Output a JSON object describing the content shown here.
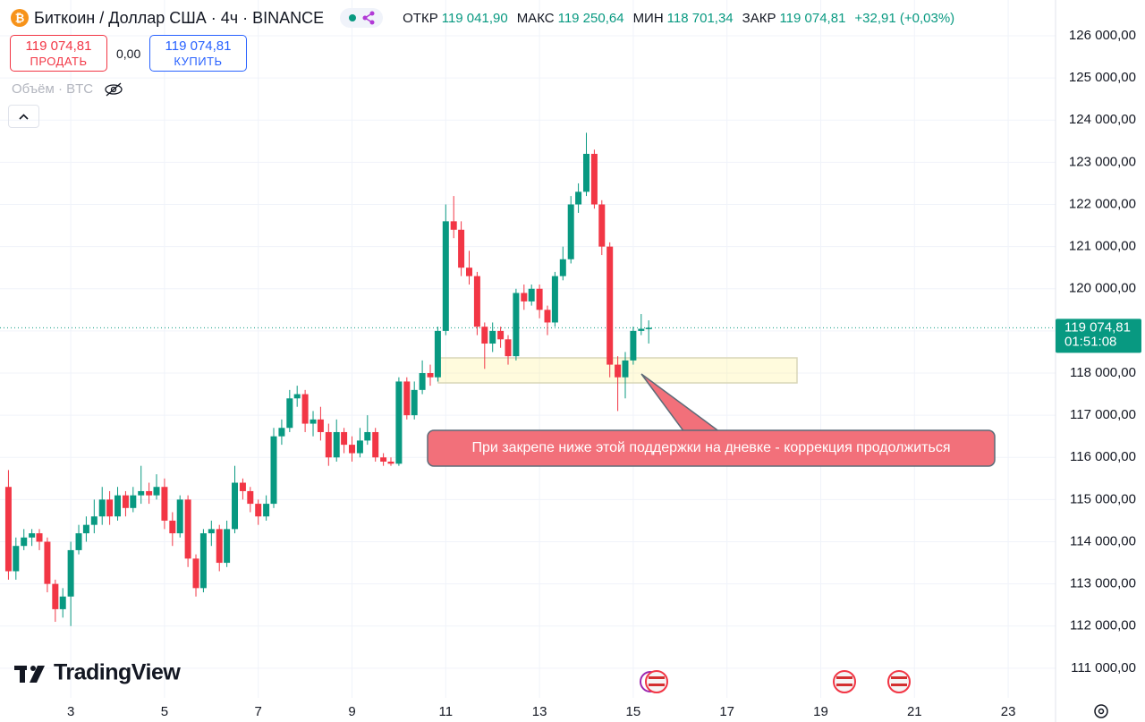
{
  "header": {
    "title": "Биткоин / Доллар США · 4ч · BINANCE",
    "ohlc": [
      {
        "label": "ОТКР",
        "value": "119 041,90"
      },
      {
        "label": "МАКС",
        "value": "119 250,64"
      },
      {
        "label": "МИН",
        "value": "118 701,34"
      },
      {
        "label": "ЗАКР",
        "value": "119 074,81"
      }
    ],
    "change": "+32,91 (+0,03%)"
  },
  "trade": {
    "sell_price": "119 074,81",
    "sell_label": "ПРОДАТЬ",
    "spread": "0,00",
    "buy_price": "119 074,81",
    "buy_label": "КУПИТЬ"
  },
  "volume_label": "Объём · BTC",
  "logo": "TradingView",
  "chart_data": {
    "type": "candlestick",
    "x": [
      1.67,
      1.83,
      2,
      2.17,
      2.33,
      2.5,
      2.67,
      2.83,
      3,
      3.17,
      3.33,
      3.5,
      3.67,
      3.83,
      4,
      4.17,
      4.33,
      4.5,
      4.67,
      4.83,
      5,
      5.17,
      5.33,
      5.5,
      5.67,
      5.83,
      6,
      6.17,
      6.33,
      6.5,
      6.67,
      6.83,
      7,
      7.17,
      7.33,
      7.5,
      7.67,
      7.83,
      8,
      8.17,
      8.33,
      8.5,
      8.67,
      8.83,
      9,
      9.17,
      9.33,
      9.5,
      9.67,
      9.83,
      10,
      10.17,
      10.33,
      10.5,
      10.67,
      10.83,
      11,
      11.17,
      11.33,
      11.5,
      11.67,
      11.83,
      12,
      12.17,
      12.33,
      12.5,
      12.67,
      12.83,
      13,
      13.17,
      13.33,
      13.5,
      13.67,
      13.83,
      14,
      14.17,
      14.33,
      14.5,
      14.67,
      14.83,
      15,
      15.17,
      15.33
    ],
    "open": [
      115300,
      113300,
      113900,
      114100,
      114200,
      114000,
      113000,
      112400,
      112700,
      113800,
      114200,
      114400,
      114600,
      115000,
      114600,
      115100,
      114800,
      115100,
      115200,
      115100,
      115300,
      114500,
      114200,
      115000,
      113600,
      112900,
      114200,
      114300,
      113500,
      114300,
      115400,
      115200,
      114900,
      114600,
      114900,
      116500,
      116700,
      117400,
      117500,
      116800,
      116900,
      116600,
      116000,
      116600,
      116300,
      116100,
      116400,
      116600,
      116000,
      115900,
      115850,
      117800,
      117000,
      117600,
      118000,
      117900,
      119000,
      121600,
      121400,
      120500,
      120300,
      119100,
      118700,
      119000,
      118800,
      118400,
      119900,
      119700,
      120000,
      119500,
      119200,
      120300,
      120700,
      122000,
      122300,
      123200,
      122000,
      121000,
      118200,
      117900,
      118300,
      119000,
      119041.9
    ],
    "high": [
      115700,
      114100,
      114300,
      114300,
      114300,
      114100,
      113100,
      112900,
      114000,
      114400,
      114600,
      115000,
      115300,
      115200,
      115300,
      115200,
      115300,
      115800,
      115400,
      115600,
      115500,
      114700,
      115100,
      115100,
      113700,
      114300,
      114500,
      114400,
      114500,
      115800,
      115500,
      115300,
      115000,
      115100,
      116700,
      116900,
      117600,
      117700,
      117600,
      117100,
      117200,
      116800,
      116900,
      116700,
      116500,
      116700,
      117000,
      116700,
      116100,
      116000,
      117900,
      117900,
      117800,
      118300,
      118200,
      119100,
      122000,
      122200,
      121600,
      120900,
      120400,
      119200,
      119200,
      119100,
      118900,
      120000,
      120100,
      120100,
      120100,
      119600,
      120400,
      121000,
      122200,
      122500,
      123700,
      123300,
      122100,
      121100,
      118400,
      118500,
      119100,
      119400,
      119250.64
    ],
    "low": [
      113100,
      113100,
      113800,
      113900,
      113800,
      112800,
      112100,
      112200,
      112000,
      113700,
      114000,
      114200,
      114400,
      114400,
      114500,
      114600,
      114700,
      114900,
      114900,
      115000,
      114300,
      113900,
      114100,
      113400,
      112700,
      112800,
      113900,
      113300,
      113400,
      114200,
      115000,
      114700,
      114400,
      114500,
      114800,
      116300,
      116600,
      117200,
      116600,
      116500,
      116400,
      115800,
      115900,
      116100,
      115900,
      116000,
      116300,
      115900,
      115800,
      115800,
      115800,
      116900,
      116900,
      117500,
      117700,
      117800,
      118900,
      121200,
      120300,
      120100,
      118900,
      118100,
      118500,
      118600,
      118200,
      118300,
      119500,
      119600,
      119300,
      118900,
      119100,
      120200,
      120600,
      121800,
      122200,
      121900,
      120800,
      117900,
      117100,
      117400,
      118200,
      118900,
      118701.34
    ],
    "close": [
      113300,
      113900,
      114100,
      114200,
      114000,
      113000,
      112400,
      112700,
      113800,
      114200,
      114400,
      114600,
      115000,
      114600,
      115100,
      114800,
      115100,
      115200,
      115100,
      115300,
      114500,
      114200,
      115000,
      113600,
      112900,
      114200,
      114300,
      113500,
      114300,
      115400,
      115200,
      114900,
      114600,
      114900,
      116500,
      116700,
      117400,
      117500,
      116800,
      116900,
      116600,
      116000,
      116600,
      116300,
      116100,
      116400,
      116600,
      116000,
      115900,
      115850,
      117800,
      117000,
      117600,
      118000,
      117900,
      119000,
      121600,
      121400,
      120500,
      120300,
      119100,
      118700,
      119000,
      118800,
      118400,
      119900,
      119700,
      120000,
      119500,
      119200,
      120300,
      120700,
      122000,
      122300,
      123200,
      122000,
      121000,
      118200,
      117900,
      118300,
      119000,
      119050,
      119074.81
    ],
    "up_color": "#089981",
    "down_color": "#f23645",
    "xlim": [
      1.49,
      24.01
    ],
    "xticks": [
      3,
      5,
      7,
      9,
      11,
      13,
      15,
      17,
      19,
      21,
      23
    ],
    "ylim": [
      110297,
      126849
    ],
    "yticks": [
      {
        "value": 111000,
        "label": "111 000,00"
      },
      {
        "value": 112000,
        "label": "112 000,00"
      },
      {
        "value": 113000,
        "label": "113 000,00"
      },
      {
        "value": 114000,
        "label": "114 000,00"
      },
      {
        "value": 115000,
        "label": "115 000,00"
      },
      {
        "value": 116000,
        "label": "116 000,00"
      },
      {
        "value": 117000,
        "label": "117 000,00"
      },
      {
        "value": 118000,
        "label": "118 000,00"
      },
      {
        "value": 119000,
        "label": "119 000,00"
      },
      {
        "value": 120000,
        "label": "120 000,00"
      },
      {
        "value": 121000,
        "label": "121 000,00"
      },
      {
        "value": 122000,
        "label": "122 000,00"
      },
      {
        "value": 123000,
        "label": "123 000,00"
      },
      {
        "value": 124000,
        "label": "124 000,00"
      },
      {
        "value": 125000,
        "label": "125 000,00"
      },
      {
        "value": 126000,
        "label": "126 000,00"
      }
    ],
    "grid": true,
    "last_price_label": "119 074,81",
    "countdown": "01:51:08",
    "annotation": "При закрепе ниже этой поддержки на дневке - коррекция продолжиться"
  }
}
